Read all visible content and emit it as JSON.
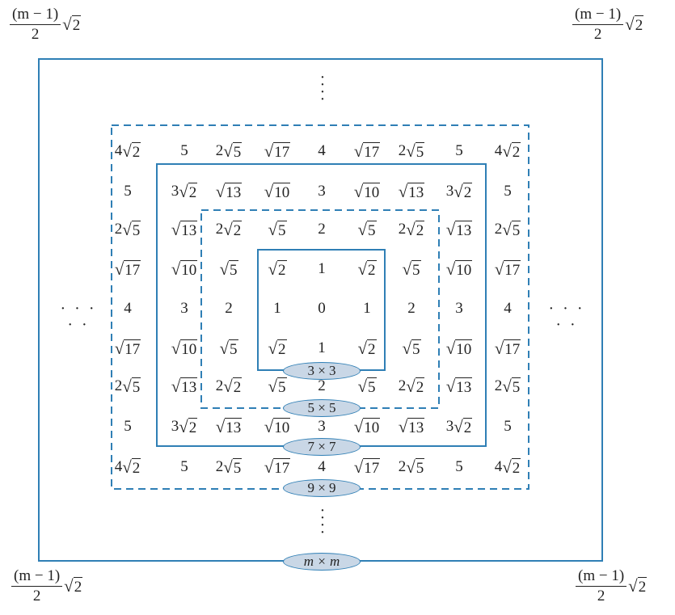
{
  "corner_label": {
    "numerator": "(m − 1)",
    "denominator": "2",
    "radicand": "2"
  },
  "grid": {
    "size": 9,
    "rows": [
      [
        [
          "4",
          "2"
        ],
        [
          "5"
        ],
        [
          "2",
          "5"
        ],
        [
          "",
          "17"
        ],
        [
          "4"
        ],
        [
          "",
          "17"
        ],
        [
          "2",
          "5"
        ],
        [
          "5"
        ],
        [
          "4",
          "2"
        ]
      ],
      [
        [
          "5"
        ],
        [
          "3",
          "2"
        ],
        [
          "",
          "13"
        ],
        [
          "",
          "10"
        ],
        [
          "3"
        ],
        [
          "",
          "10"
        ],
        [
          "",
          "13"
        ],
        [
          "3",
          "2"
        ],
        [
          "5"
        ]
      ],
      [
        [
          "2",
          "5"
        ],
        [
          "",
          "13"
        ],
        [
          "2",
          "2"
        ],
        [
          "",
          "5"
        ],
        [
          "2"
        ],
        [
          "",
          "5"
        ],
        [
          "2",
          "2"
        ],
        [
          "",
          "13"
        ],
        [
          "2",
          "5"
        ]
      ],
      [
        [
          "",
          "17"
        ],
        [
          "",
          "10"
        ],
        [
          "",
          "5"
        ],
        [
          "",
          "2"
        ],
        [
          "1"
        ],
        [
          "",
          "2"
        ],
        [
          "",
          "5"
        ],
        [
          "",
          "10"
        ],
        [
          "",
          "17"
        ]
      ],
      [
        [
          "4"
        ],
        [
          "3"
        ],
        [
          "2"
        ],
        [
          "1"
        ],
        [
          "0"
        ],
        [
          "1"
        ],
        [
          "2"
        ],
        [
          "3"
        ],
        [
          "4"
        ]
      ],
      [
        [
          "",
          "17"
        ],
        [
          "",
          "10"
        ],
        [
          "",
          "5"
        ],
        [
          "",
          "2"
        ],
        [
          "1"
        ],
        [
          "",
          "2"
        ],
        [
          "",
          "5"
        ],
        [
          "",
          "10"
        ],
        [
          "",
          "17"
        ]
      ],
      [
        [
          "2",
          "5"
        ],
        [
          "",
          "13"
        ],
        [
          "2",
          "2"
        ],
        [
          "",
          "5"
        ],
        [
          "2"
        ],
        [
          "",
          "5"
        ],
        [
          "2",
          "2"
        ],
        [
          "",
          "13"
        ],
        [
          "2",
          "5"
        ]
      ],
      [
        [
          "5"
        ],
        [
          "3",
          "2"
        ],
        [
          "",
          "13"
        ],
        [
          "",
          "10"
        ],
        [
          "3"
        ],
        [
          "",
          "10"
        ],
        [
          "",
          "13"
        ],
        [
          "3",
          "2"
        ],
        [
          "5"
        ]
      ],
      [
        [
          "4",
          "2"
        ],
        [
          "5"
        ],
        [
          "2",
          "5"
        ],
        [
          "",
          "17"
        ],
        [
          "4"
        ],
        [
          "",
          "17"
        ],
        [
          "2",
          "5"
        ],
        [
          "5"
        ],
        [
          "4",
          "2"
        ]
      ]
    ]
  },
  "boxes": [
    {
      "label": "3 × 3",
      "style": "solid"
    },
    {
      "label": "5 × 5",
      "style": "dashed"
    },
    {
      "label": "7 × 7",
      "style": "solid"
    },
    {
      "label": "9 × 9",
      "style": "dashed"
    },
    {
      "label": "m × m",
      "style": "solid"
    }
  ],
  "ellipsis_h": "· · · · ·",
  "ellipsis_v": "⋮",
  "colors": {
    "frame": "#2f7fb5",
    "badge_fill": "#c9d7e6",
    "text": "#222222"
  }
}
